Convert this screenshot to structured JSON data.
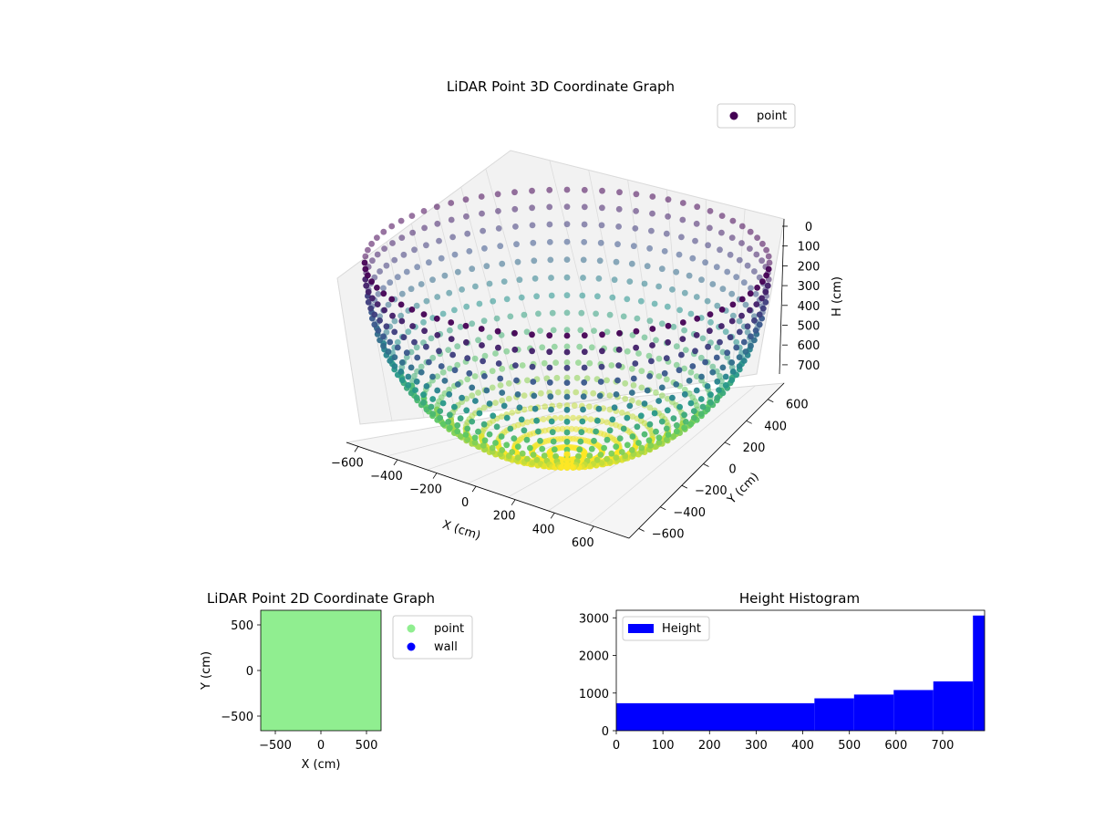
{
  "chart_data": [
    {
      "type": "scatter3d",
      "title": "LiDAR Point 3D Coordinate Graph",
      "xlabel": "X (cm)",
      "ylabel": "Y (cm)",
      "zlabel": "H (cm)",
      "xticks": [
        "−600",
        "−400",
        "−200",
        "0",
        "200",
        "400",
        "600"
      ],
      "yticks": [
        "−600",
        "−400",
        "−200",
        "0",
        "200",
        "400",
        "600"
      ],
      "zticks": [
        "0",
        "100",
        "200",
        "300",
        "400",
        "500",
        "600",
        "700"
      ],
      "xlim": [
        -650,
        650
      ],
      "ylim": [
        -650,
        650
      ],
      "zlim": [
        0,
        780
      ],
      "z_inverted": true,
      "shape": "hemisphere",
      "radius": 600,
      "depth": 780,
      "colormap": "viridis",
      "legend": [
        {
          "label": "point",
          "color": "#440154",
          "marker": "circle"
        }
      ],
      "legend_position": "top-right",
      "grid": true
    },
    {
      "type": "scatter",
      "title": "LiDAR Point 2D Coordinate Graph",
      "xlabel": "X (cm)",
      "ylabel": "Y (cm)",
      "xticks": [
        "−500",
        "0",
        "500"
      ],
      "yticks": [
        "−500",
        "0",
        "500"
      ],
      "xlim": [
        -660,
        660
      ],
      "ylim": [
        -660,
        660
      ],
      "series": [
        {
          "name": "point",
          "color": "#90ee90"
        },
        {
          "name": "wall",
          "color": "#0000ff"
        }
      ],
      "legend_position": "outside-right"
    },
    {
      "type": "bar",
      "title": "Height Histogram",
      "xticks": [
        "0",
        "100",
        "200",
        "300",
        "400",
        "500",
        "600",
        "700"
      ],
      "yticks": [
        "0",
        "1000",
        "2000",
        "3000"
      ],
      "xlim": [
        0,
        790
      ],
      "ylim": [
        0,
        3200
      ],
      "color": "#0000ff",
      "bins": [
        {
          "x0": 0,
          "x1": 425,
          "value": 730
        },
        {
          "x0": 425,
          "x1": 510,
          "value": 860
        },
        {
          "x0": 510,
          "x1": 595,
          "value": 960
        },
        {
          "x0": 595,
          "x1": 680,
          "value": 1080
        },
        {
          "x0": 680,
          "x1": 765,
          "value": 1310
        },
        {
          "x0": 765,
          "x1": 790,
          "value": 3060
        }
      ],
      "legend": [
        {
          "label": "Height",
          "color": "#0000ff"
        }
      ],
      "legend_position": "top-left"
    }
  ]
}
